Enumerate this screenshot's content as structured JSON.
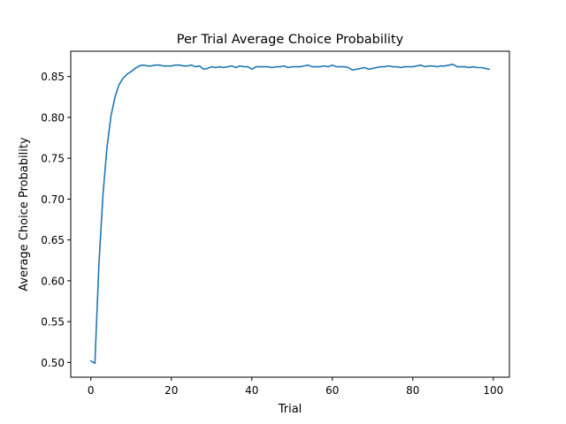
{
  "chart_data": {
    "type": "line",
    "title": "Per Trial Average Choice Probability",
    "xlabel": "Trial",
    "ylabel": "Average Choice Probability",
    "xlim": [
      -5,
      104
    ],
    "ylim": [
      0.482,
      0.881
    ],
    "xticks": [
      0,
      20,
      40,
      60,
      80,
      100
    ],
    "yticks": [
      0.5,
      0.55,
      0.6,
      0.65,
      0.7,
      0.75,
      0.8,
      0.85
    ],
    "grid": false,
    "series": [
      {
        "color": "#1f77b4",
        "x": [
          0,
          1,
          2,
          3,
          4,
          5,
          6,
          7,
          8,
          9,
          10,
          11,
          12,
          13,
          14,
          15,
          16,
          17,
          18,
          19,
          20,
          21,
          22,
          23,
          24,
          25,
          26,
          27,
          28,
          29,
          30,
          31,
          32,
          33,
          34,
          35,
          36,
          37,
          38,
          39,
          40,
          41,
          42,
          43,
          44,
          45,
          46,
          47,
          48,
          49,
          50,
          51,
          52,
          53,
          54,
          55,
          56,
          57,
          58,
          59,
          60,
          61,
          62,
          63,
          64,
          65,
          66,
          67,
          68,
          69,
          70,
          71,
          72,
          73,
          74,
          75,
          76,
          77,
          78,
          79,
          80,
          81,
          82,
          83,
          84,
          85,
          86,
          87,
          88,
          89,
          90,
          91,
          92,
          93,
          94,
          95,
          96,
          97,
          98,
          99
        ],
        "values": [
          0.502,
          0.499,
          0.62,
          0.705,
          0.763,
          0.802,
          0.825,
          0.84,
          0.848,
          0.853,
          0.856,
          0.86,
          0.863,
          0.864,
          0.863,
          0.863,
          0.864,
          0.864,
          0.863,
          0.863,
          0.863,
          0.864,
          0.864,
          0.863,
          0.863,
          0.864,
          0.862,
          0.863,
          0.859,
          0.86,
          0.862,
          0.861,
          0.862,
          0.861,
          0.862,
          0.863,
          0.861,
          0.863,
          0.862,
          0.862,
          0.859,
          0.862,
          0.862,
          0.862,
          0.862,
          0.861,
          0.862,
          0.862,
          0.863,
          0.861,
          0.862,
          0.862,
          0.862,
          0.863,
          0.864,
          0.862,
          0.862,
          0.862,
          0.863,
          0.862,
          0.864,
          0.862,
          0.862,
          0.862,
          0.861,
          0.858,
          0.859,
          0.86,
          0.861,
          0.859,
          0.86,
          0.861,
          0.862,
          0.862,
          0.863,
          0.862,
          0.862,
          0.861,
          0.862,
          0.862,
          0.862,
          0.863,
          0.864,
          0.862,
          0.863,
          0.863,
          0.862,
          0.863,
          0.863,
          0.864,
          0.865,
          0.862,
          0.862,
          0.862,
          0.861,
          0.862,
          0.861,
          0.861,
          0.86,
          0.859
        ]
      }
    ]
  }
}
